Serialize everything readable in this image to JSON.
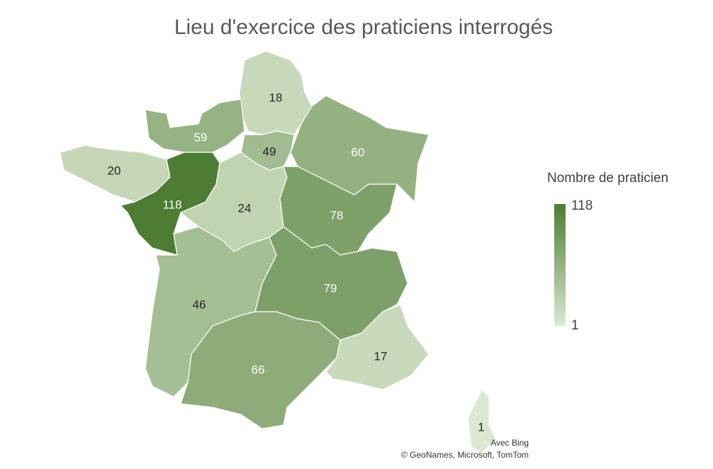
{
  "chart_data": {
    "type": "choropleth",
    "title": "Lieu d'exercice des praticiens interrogés",
    "values": [
      18,
      59,
      49,
      60,
      20,
      118,
      24,
      78,
      46,
      79,
      66,
      17,
      1
    ],
    "legend": {
      "title": "Nombre de praticien",
      "max": 118,
      "min": 1,
      "color_max": "#4d7c33",
      "color_min": "#dce9d1"
    },
    "credits": [
      "Avec Bing",
      "© GeoNames, Microsoft, TomTom"
    ]
  }
}
